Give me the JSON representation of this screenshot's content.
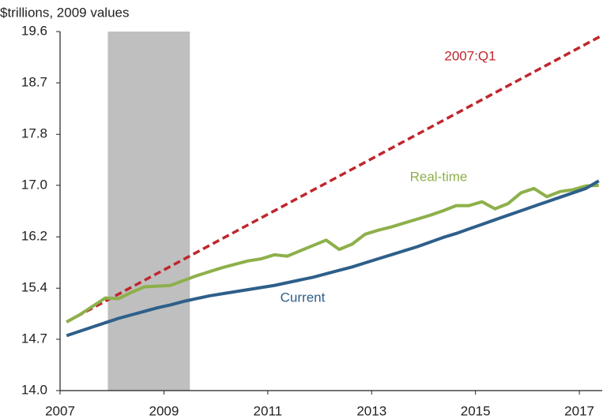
{
  "chart_data": {
    "type": "line",
    "y_axis_label": "$trillions, 2009 values",
    "y_scale": "log",
    "xlim": [
      2007,
      2017.44
    ],
    "xticks": [
      2007,
      2009,
      2011,
      2013,
      2015,
      2017
    ],
    "ylim": [
      14,
      19.6
    ],
    "yticks": [
      {
        "value": 14,
        "label": "14.0"
      },
      {
        "value": 14.69,
        "label": "14.7"
      },
      {
        "value": 15.41,
        "label": "15.4"
      },
      {
        "value": 16.17,
        "label": "16.2"
      },
      {
        "value": 16.97,
        "label": "17.0"
      },
      17.8,
      {
        "value": 18.68,
        "label": "18.7"
      },
      19.6
    ],
    "shaded_region": [
      2007.92,
      2009.5
    ],
    "shade_color": "#bfbfbf",
    "grid": false,
    "series": [
      {
        "name": "2007:Q1",
        "color": "#c0262d",
        "dashed": true,
        "x": [
          2007.125,
          2017.44
        ],
        "values": [
          14.93,
          19.53
        ]
      },
      {
        "name": "Real-time",
        "color": "#8db04a",
        "dashed": false,
        "x": [
          2007.125,
          2007.375,
          2007.625,
          2007.875,
          2008.125,
          2008.375,
          2008.625,
          2008.875,
          2009.125,
          2009.375,
          2009.625,
          2009.875,
          2010.125,
          2010.375,
          2010.625,
          2010.875,
          2011.125,
          2011.375,
          2011.625,
          2011.875,
          2012.125,
          2012.375,
          2012.625,
          2012.875,
          2013.125,
          2013.375,
          2013.625,
          2013.875,
          2014.125,
          2014.375,
          2014.625,
          2014.875,
          2015.125,
          2015.375,
          2015.625,
          2015.875,
          2016.125,
          2016.375,
          2016.625,
          2016.875,
          2017.125,
          2017.375
        ],
        "values": [
          14.93,
          15.03,
          15.15,
          15.27,
          15.26,
          15.35,
          15.43,
          15.44,
          15.45,
          15.52,
          15.59,
          15.65,
          15.71,
          15.76,
          15.81,
          15.84,
          15.9,
          15.88,
          15.96,
          16.04,
          16.12,
          15.98,
          16.06,
          16.21,
          16.27,
          16.32,
          16.38,
          16.44,
          16.5,
          16.57,
          16.65,
          16.65,
          16.71,
          16.6,
          16.68,
          16.85,
          16.92,
          16.79,
          16.87,
          16.9,
          16.96,
          16.97
        ]
      },
      {
        "name": "Current",
        "color": "#2e5f8a",
        "dashed": false,
        "x": [
          2007.125,
          2007.375,
          2007.625,
          2007.875,
          2008.125,
          2008.375,
          2008.625,
          2008.875,
          2009.125,
          2009.375,
          2009.625,
          2009.875,
          2010.125,
          2010.375,
          2010.625,
          2010.875,
          2011.125,
          2011.375,
          2011.625,
          2011.875,
          2012.125,
          2012.375,
          2012.625,
          2012.875,
          2013.125,
          2013.375,
          2013.625,
          2013.875,
          2014.125,
          2014.375,
          2014.625,
          2014.875,
          2015.125,
          2015.375,
          2015.625,
          2015.875,
          2016.125,
          2016.375,
          2016.625,
          2016.875,
          2017.125,
          2017.375
        ],
        "values": [
          14.74,
          14.8,
          14.86,
          14.92,
          14.98,
          15.03,
          15.08,
          15.13,
          15.17,
          15.22,
          15.26,
          15.3,
          15.33,
          15.36,
          15.39,
          15.42,
          15.45,
          15.49,
          15.53,
          15.57,
          15.62,
          15.67,
          15.72,
          15.78,
          15.84,
          15.9,
          15.96,
          16.02,
          16.09,
          16.16,
          16.22,
          16.29,
          16.36,
          16.43,
          16.5,
          16.57,
          16.64,
          16.71,
          16.78,
          16.85,
          16.92,
          17.04
        ]
      }
    ]
  }
}
